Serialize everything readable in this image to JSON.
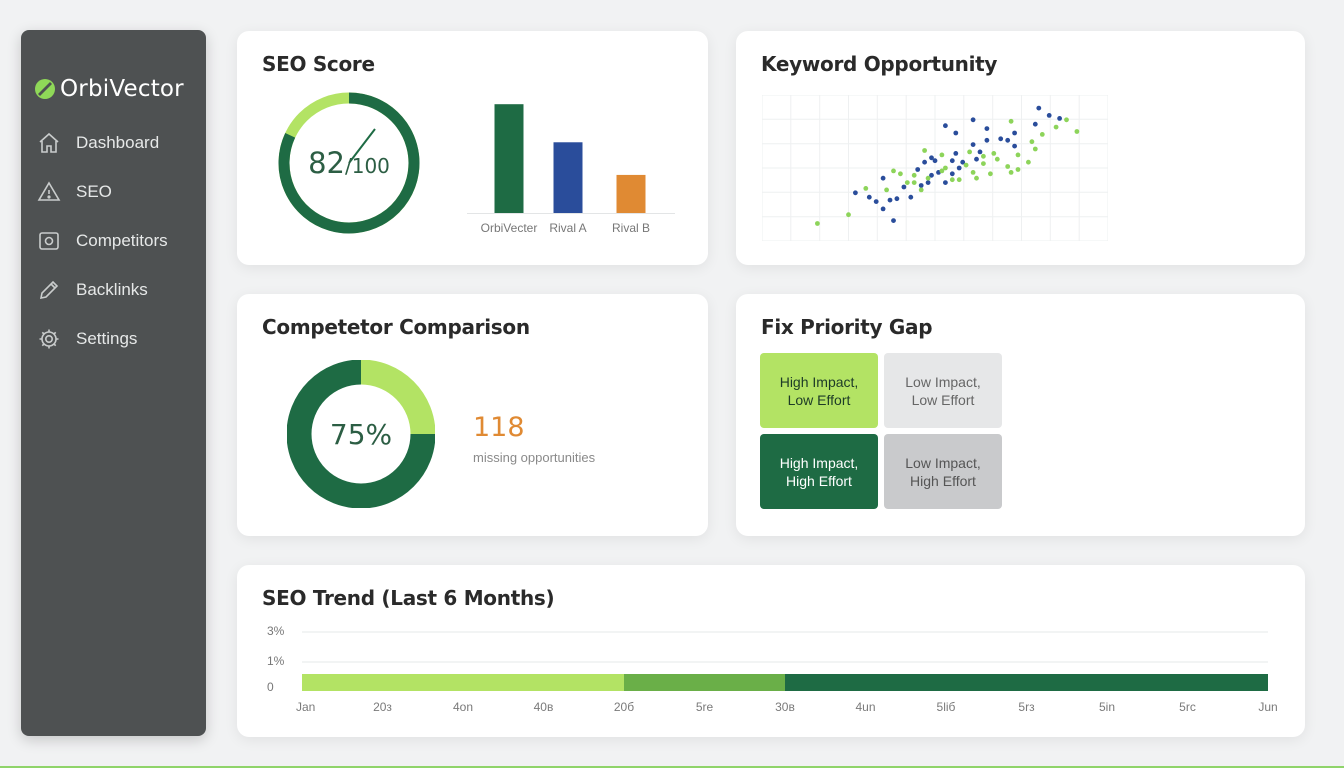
{
  "app": {
    "name": "OrbiVector"
  },
  "sidebar": {
    "items": [
      {
        "label": "Dashboard",
        "icon": "home-icon"
      },
      {
        "label": "SEO",
        "icon": "warning-icon"
      },
      {
        "label": "Competitors",
        "icon": "target-icon"
      },
      {
        "label": "Backlinks",
        "icon": "pencil-icon"
      },
      {
        "label": "Settings",
        "icon": "gear-icon"
      }
    ]
  },
  "seo_score": {
    "title": "SEO Score",
    "score": "82",
    "max": "/100",
    "score_fraction": 0.82
  },
  "keyword": {
    "title": "Keyword Opportunity"
  },
  "competitor": {
    "title": "Competetor Comparison",
    "percent": "75%",
    "count": "118",
    "count_label": "missing opportunities"
  },
  "fix": {
    "title": "Fix Priority Gap",
    "cells": [
      {
        "label": "High Impact, Low Effort",
        "color": "#b3e364"
      },
      {
        "label": "Low Impact, Low Effort",
        "color": "#e6e7e8"
      },
      {
        "label": "High Impact, High Effort",
        "color": "#1e6b44"
      },
      {
        "label": "Low Impact, High Effort",
        "color": "#c9cacc"
      }
    ]
  },
  "trend": {
    "title": "SEO Trend (Last 6 Months)"
  },
  "colors": {
    "dark_green": "#1e6b44",
    "light_green": "#b3e364",
    "mid_green": "#6aaf48",
    "blue": "#2a4d9b",
    "orange": "#e08a33"
  },
  "chart_data": [
    {
      "type": "bar",
      "categories": [
        "OrbiVecter",
        "Rival A",
        "Rival B"
      ],
      "values": [
        80,
        52,
        28
      ],
      "ylim": [
        0,
        100
      ],
      "colors": [
        "#1e6b44",
        "#2a4d9b",
        "#e08a33"
      ],
      "grid": false
    },
    {
      "type": "scatter",
      "grid": true,
      "xlim": [
        0,
        100
      ],
      "ylim": [
        0,
        100
      ],
      "series": [
        {
          "color": "#2a4d9b",
          "points": [
            [
              27,
              33
            ],
            [
              31,
              30
            ],
            [
              33,
              27
            ],
            [
              37,
              28
            ],
            [
              39,
              29
            ],
            [
              35,
              22
            ],
            [
              43,
              30
            ],
            [
              41,
              37
            ],
            [
              46,
              38
            ],
            [
              48,
              40
            ],
            [
              49,
              45
            ],
            [
              53,
              40
            ],
            [
              51,
              47
            ],
            [
              55,
              46
            ],
            [
              57,
              50
            ],
            [
              62,
              56
            ],
            [
              61,
              66
            ],
            [
              56,
              60
            ],
            [
              63,
              61
            ],
            [
              58,
              54
            ],
            [
              65,
              69
            ],
            [
              69,
              70
            ],
            [
              71,
              69
            ],
            [
              65,
              77
            ],
            [
              73,
              74
            ],
            [
              79,
              80
            ],
            [
              86,
              84
            ],
            [
              83,
              86
            ],
            [
              80,
              91
            ],
            [
              61,
              83
            ],
            [
              53,
              79
            ],
            [
              56,
              74
            ],
            [
              73,
              65
            ],
            [
              47,
              54
            ],
            [
              38,
              14
            ],
            [
              49,
              57
            ],
            [
              45,
              49
            ],
            [
              55,
              55
            ],
            [
              50,
              55
            ],
            [
              35,
              43
            ]
          ]
        },
        {
          "color": "#8dd45a",
          "points": [
            [
              16,
              12
            ],
            [
              25,
              18
            ],
            [
              30,
              36
            ],
            [
              36,
              35
            ],
            [
              42,
              40
            ],
            [
              38,
              48
            ],
            [
              44,
              45
            ],
            [
              48,
              43
            ],
            [
              52,
              48
            ],
            [
              55,
              42
            ],
            [
              59,
              52
            ],
            [
              61,
              47
            ],
            [
              62,
              43
            ],
            [
              64,
              58
            ],
            [
              67,
              60
            ],
            [
              68,
              56
            ],
            [
              72,
              47
            ],
            [
              74,
              49
            ],
            [
              66,
              46
            ],
            [
              78,
              68
            ],
            [
              81,
              73
            ],
            [
              79,
              63
            ],
            [
              85,
              78
            ],
            [
              88,
              83
            ],
            [
              91,
              75
            ],
            [
              74,
              59
            ],
            [
              71,
              51
            ],
            [
              77,
              54
            ],
            [
              53,
              50
            ],
            [
              57,
              42
            ],
            [
              40,
              46
            ],
            [
              47,
              62
            ],
            [
              52,
              59
            ],
            [
              60,
              61
            ],
            [
              64,
              53
            ],
            [
              46,
              35
            ],
            [
              44,
              40
            ],
            [
              72,
              82
            ]
          ]
        }
      ]
    },
    {
      "type": "pie",
      "values": [
        75,
        25
      ],
      "labels": [
        "75%",
        ""
      ],
      "colors": [
        "#1e6b44",
        "#b3e364"
      ]
    },
    {
      "type": "bar",
      "title": "SEO Trend (Last 6 Months)",
      "categories": [
        "Jan",
        "20з",
        "4оn",
        "40в",
        "20б",
        "5rе",
        "30в",
        "4un",
        "5liб",
        "5rз",
        "5in",
        "5rс",
        "Jun"
      ],
      "y_ticks": [
        "0",
        "1%",
        "3%"
      ],
      "segments": [
        {
          "from": 0,
          "to": 4,
          "color": "#b3e364"
        },
        {
          "from": 4,
          "to": 6,
          "color": "#6aaf48"
        },
        {
          "from": 6,
          "to": 12,
          "color": "#1e6b44"
        }
      ],
      "grid": true
    }
  ]
}
